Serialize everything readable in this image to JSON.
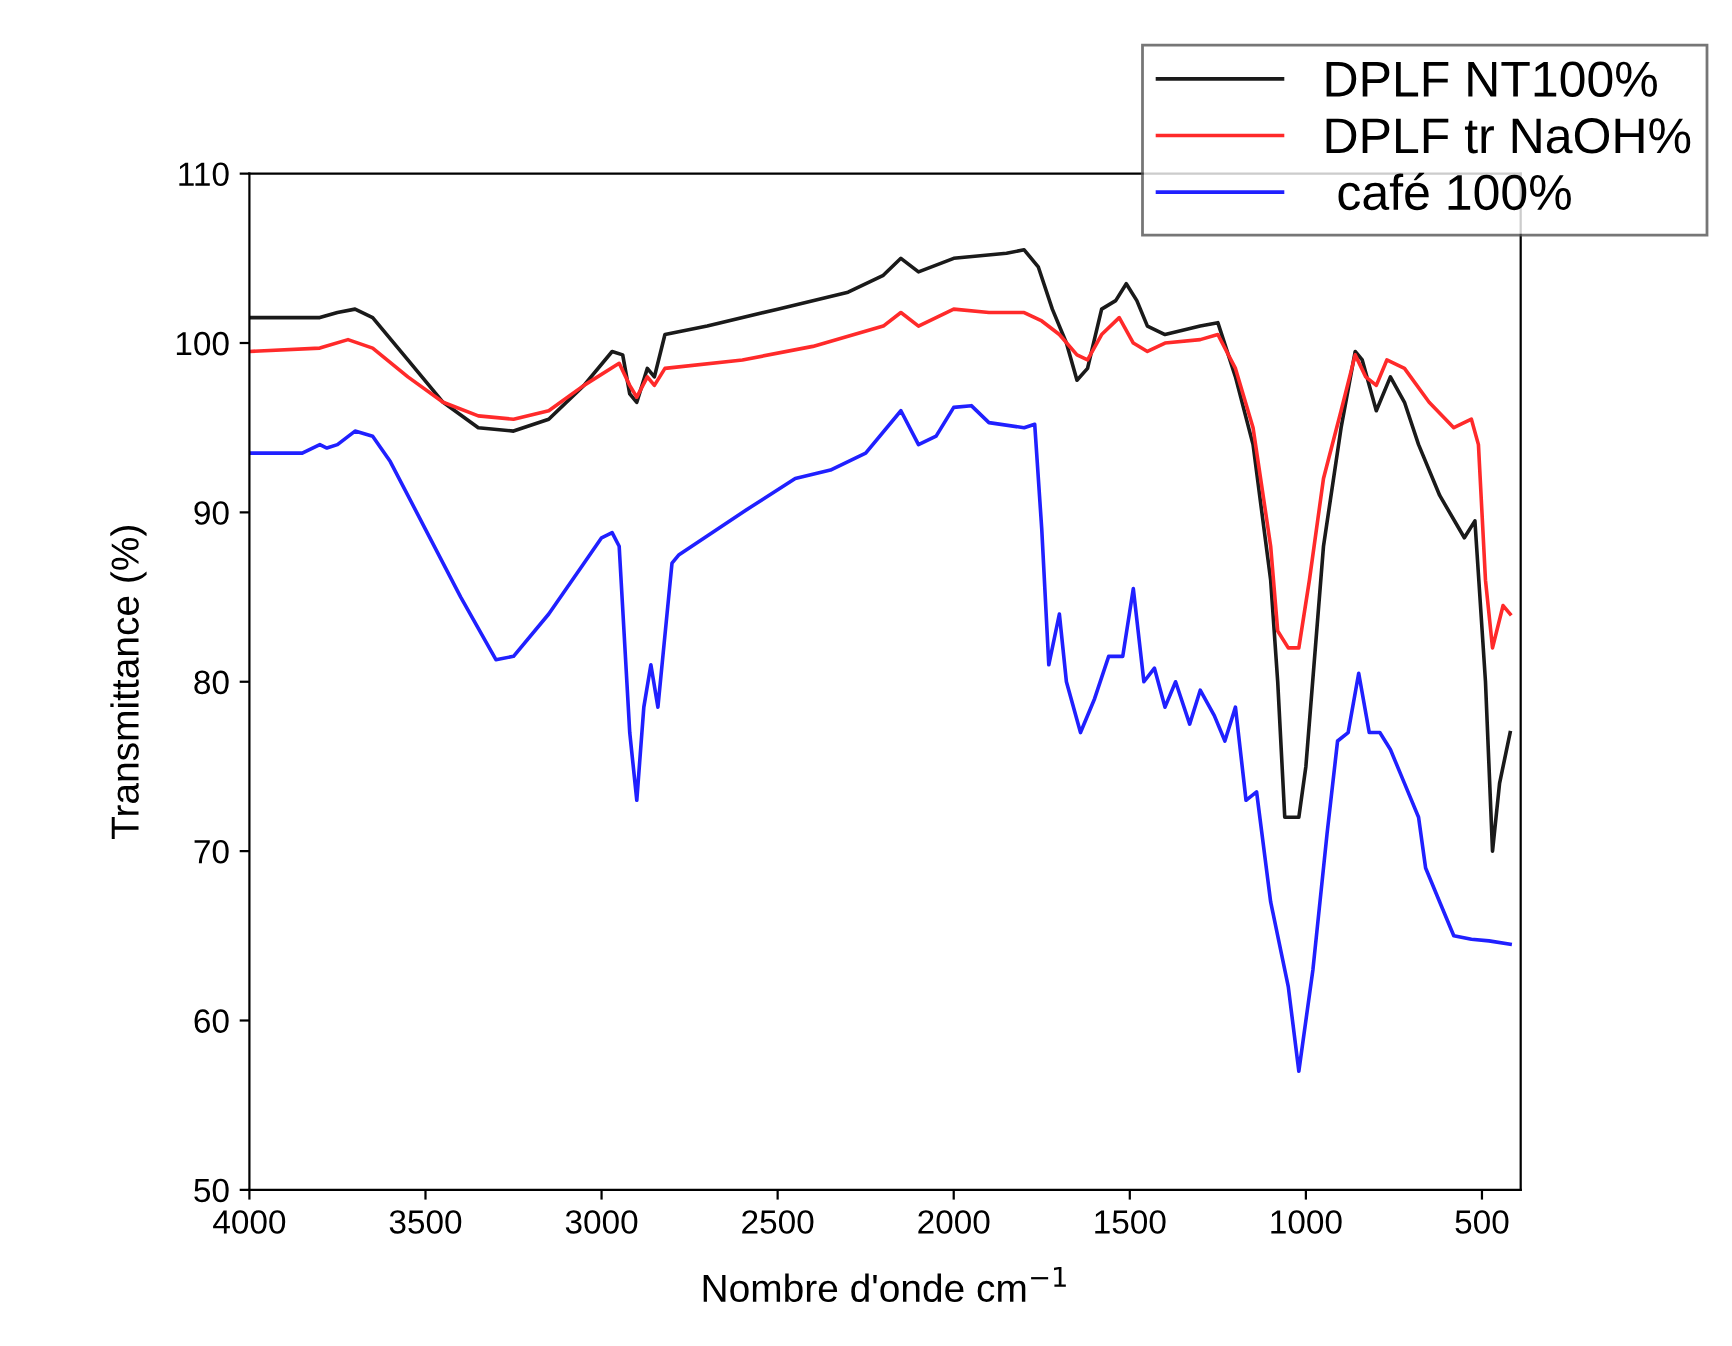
{
  "chart_data": {
    "type": "line",
    "xlabel": "Nombre d'onde cm$^{−1}$",
    "ylabel": "Transmittance (%)",
    "xlim": [
      4000,
      390
    ],
    "ylim": [
      50,
      110
    ],
    "xticks": [
      4000,
      3500,
      3000,
      2500,
      2000,
      1500,
      1000,
      500
    ],
    "yticks": [
      50,
      60,
      70,
      80,
      90,
      100,
      110
    ],
    "grid": false,
    "legend": "top right",
    "line_style": "solid",
    "marker": "none",
    "series": [
      {
        "name": "DPLF NT100%",
        "color": "#1a1a1a",
        "x": [
          4000,
          3800,
          3750,
          3700,
          3650,
          3550,
          3450,
          3350,
          3250,
          3150,
          3050,
          2970,
          2940,
          2920,
          2900,
          2870,
          2850,
          2820,
          2700,
          2500,
          2300,
          2200,
          2150,
          2100,
          2000,
          1850,
          1800,
          1760,
          1720,
          1680,
          1650,
          1620,
          1580,
          1540,
          1510,
          1480,
          1450,
          1400,
          1300,
          1250,
          1200,
          1150,
          1100,
          1080,
          1060,
          1020,
          1000,
          950,
          900,
          860,
          840,
          800,
          760,
          720,
          680,
          620,
          550,
          520,
          490,
          470,
          450,
          420
        ],
        "values": [
          101.5,
          101.5,
          101.8,
          102.0,
          101.5,
          99,
          96.5,
          95,
          94.8,
          95.5,
          97.5,
          99.5,
          99.3,
          97,
          96.5,
          98.5,
          98,
          100.5,
          101,
          102,
          103,
          104,
          105,
          104.2,
          105,
          105.3,
          105.5,
          104.5,
          102,
          100,
          97.8,
          98.5,
          102,
          102.5,
          103.5,
          102.5,
          101,
          100.5,
          101,
          101.2,
          98,
          94,
          86,
          80,
          72,
          72,
          75,
          88,
          95,
          99.5,
          99,
          96,
          98,
          96.5,
          94,
          91,
          88.5,
          89.5,
          80,
          70,
          74,
          77
        ]
      },
      {
        "name": "DPLF tr NaOH%",
        "color": "#ff2a2a",
        "x": [
          4000,
          3800,
          3720,
          3650,
          3550,
          3450,
          3350,
          3250,
          3150,
          3050,
          2950,
          2920,
          2900,
          2870,
          2850,
          2820,
          2600,
          2400,
          2200,
          2150,
          2100,
          2000,
          1900,
          1800,
          1750,
          1700,
          1650,
          1620,
          1580,
          1530,
          1490,
          1450,
          1400,
          1300,
          1250,
          1200,
          1150,
          1100,
          1080,
          1050,
          1020,
          990,
          950,
          900,
          860,
          830,
          800,
          770,
          720,
          650,
          580,
          530,
          510,
          490,
          470,
          440,
          420
        ],
        "values": [
          99.5,
          99.7,
          100.2,
          99.7,
          98,
          96.5,
          95.7,
          95.5,
          96,
          97.5,
          98.8,
          97.5,
          96.8,
          98,
          97.5,
          98.5,
          99,
          99.8,
          101,
          101.8,
          101,
          102,
          101.8,
          101.8,
          101.3,
          100.5,
          99.3,
          99,
          100.5,
          101.5,
          100,
          99.5,
          100,
          100.2,
          100.5,
          98.5,
          95,
          88,
          83,
          82,
          82,
          86,
          92,
          96,
          99.3,
          98,
          97.5,
          99,
          98.5,
          96.5,
          95,
          95.5,
          94,
          86,
          82,
          84.5,
          84
        ]
      },
      {
        "name": " café 100%",
        "color": "#2020ff",
        "x": [
          4000,
          3850,
          3800,
          3780,
          3750,
          3700,
          3650,
          3600,
          3500,
          3400,
          3300,
          3250,
          3150,
          3050,
          3000,
          2970,
          2950,
          2920,
          2900,
          2880,
          2860,
          2840,
          2800,
          2780,
          2600,
          2450,
          2350,
          2250,
          2150,
          2100,
          2050,
          2000,
          1950,
          1900,
          1800,
          1770,
          1750,
          1730,
          1700,
          1680,
          1640,
          1600,
          1560,
          1520,
          1490,
          1460,
          1430,
          1400,
          1370,
          1330,
          1300,
          1260,
          1230,
          1200,
          1170,
          1140,
          1100,
          1050,
          1020,
          980,
          940,
          910,
          880,
          850,
          820,
          790,
          760,
          720,
          680,
          660,
          620,
          580,
          530,
          480,
          420
        ],
        "values": [
          93.5,
          93.5,
          94,
          93.8,
          94,
          94.8,
          94.5,
          93,
          89,
          85,
          81.3,
          81.5,
          84,
          87,
          88.5,
          88.8,
          88,
          77,
          73,
          78.5,
          81,
          78.5,
          87,
          87.5,
          90,
          92,
          92.5,
          93.5,
          96,
          94,
          94.5,
          96.2,
          96.3,
          95.3,
          95,
          95.2,
          89,
          81,
          84,
          80,
          77,
          79,
          81.5,
          81.5,
          85.5,
          80,
          80.8,
          78.5,
          80,
          77.5,
          79.5,
          78,
          76.5,
          78.5,
          73,
          73.5,
          67,
          62,
          57,
          63,
          71,
          76.5,
          77,
          80.5,
          77,
          77,
          76,
          74,
          72,
          69,
          67,
          65,
          64.8,
          64.7,
          64.5
        ]
      }
    ]
  }
}
